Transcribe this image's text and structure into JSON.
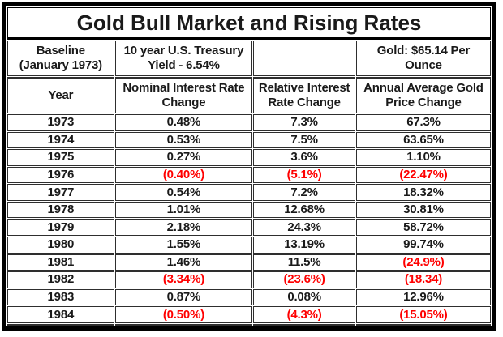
{
  "chart_data": {
    "type": "table",
    "title": "Gold Bull Market and Rising Rates",
    "baseline_row": {
      "col1": "Baseline\n(January 1973)",
      "col2": "10 year U.S. Treasury\nYield - 6.54%",
      "col3": "",
      "col4": "Gold: $65.14 Per\nOunce"
    },
    "column_headers": {
      "col1": "Year",
      "col2": "Nominal Interest Rate Change",
      "col3": "Relative Interest Rate Change",
      "col4": "Annual Average Gold Price Change"
    },
    "rows": [
      {
        "year": "1973",
        "values": [
          "0.48%",
          "7.3%",
          "67.3%"
        ]
      },
      {
        "year": "1974",
        "values": [
          "0.53%",
          "7.5%",
          "63.65%"
        ]
      },
      {
        "year": "1975",
        "values": [
          "0.27%",
          "3.6%",
          "1.10%"
        ]
      },
      {
        "year": "1976",
        "values": [
          "(0.40%)",
          "(5.1%)",
          "(22.47%)"
        ]
      },
      {
        "year": "1977",
        "values": [
          "0.54%",
          "7.2%",
          "18.32%"
        ]
      },
      {
        "year": "1978",
        "values": [
          "1.01%",
          "12.68%",
          "30.81%"
        ]
      },
      {
        "year": "1979",
        "values": [
          "2.18%",
          "24.3%",
          "58.72%"
        ]
      },
      {
        "year": "1980",
        "values": [
          "1.55%",
          "13.19%",
          "99.74%"
        ]
      },
      {
        "year": "1981",
        "values": [
          "1.46%",
          "11.5%",
          "(24.9%)"
        ]
      },
      {
        "year": "1982",
        "values": [
          "(3.34%)",
          "(23.6%)",
          "(18.34)"
        ]
      },
      {
        "year": "1983",
        "values": [
          "0.87%",
          "0.08%",
          "12.96%"
        ]
      },
      {
        "year": "1984",
        "values": [
          "(0.50%)",
          "(4.3%)",
          "(15.05%)"
        ]
      },
      {
        "year": "",
        "values": [
          "",
          "",
          ""
        ]
      }
    ],
    "negative_style": "values in parentheses shown in red",
    "colors": {
      "negative_value": "#ff0000",
      "text": "#1a1a1a",
      "grid_border": "#2e2e2e",
      "outer_border": "#000000"
    }
  }
}
